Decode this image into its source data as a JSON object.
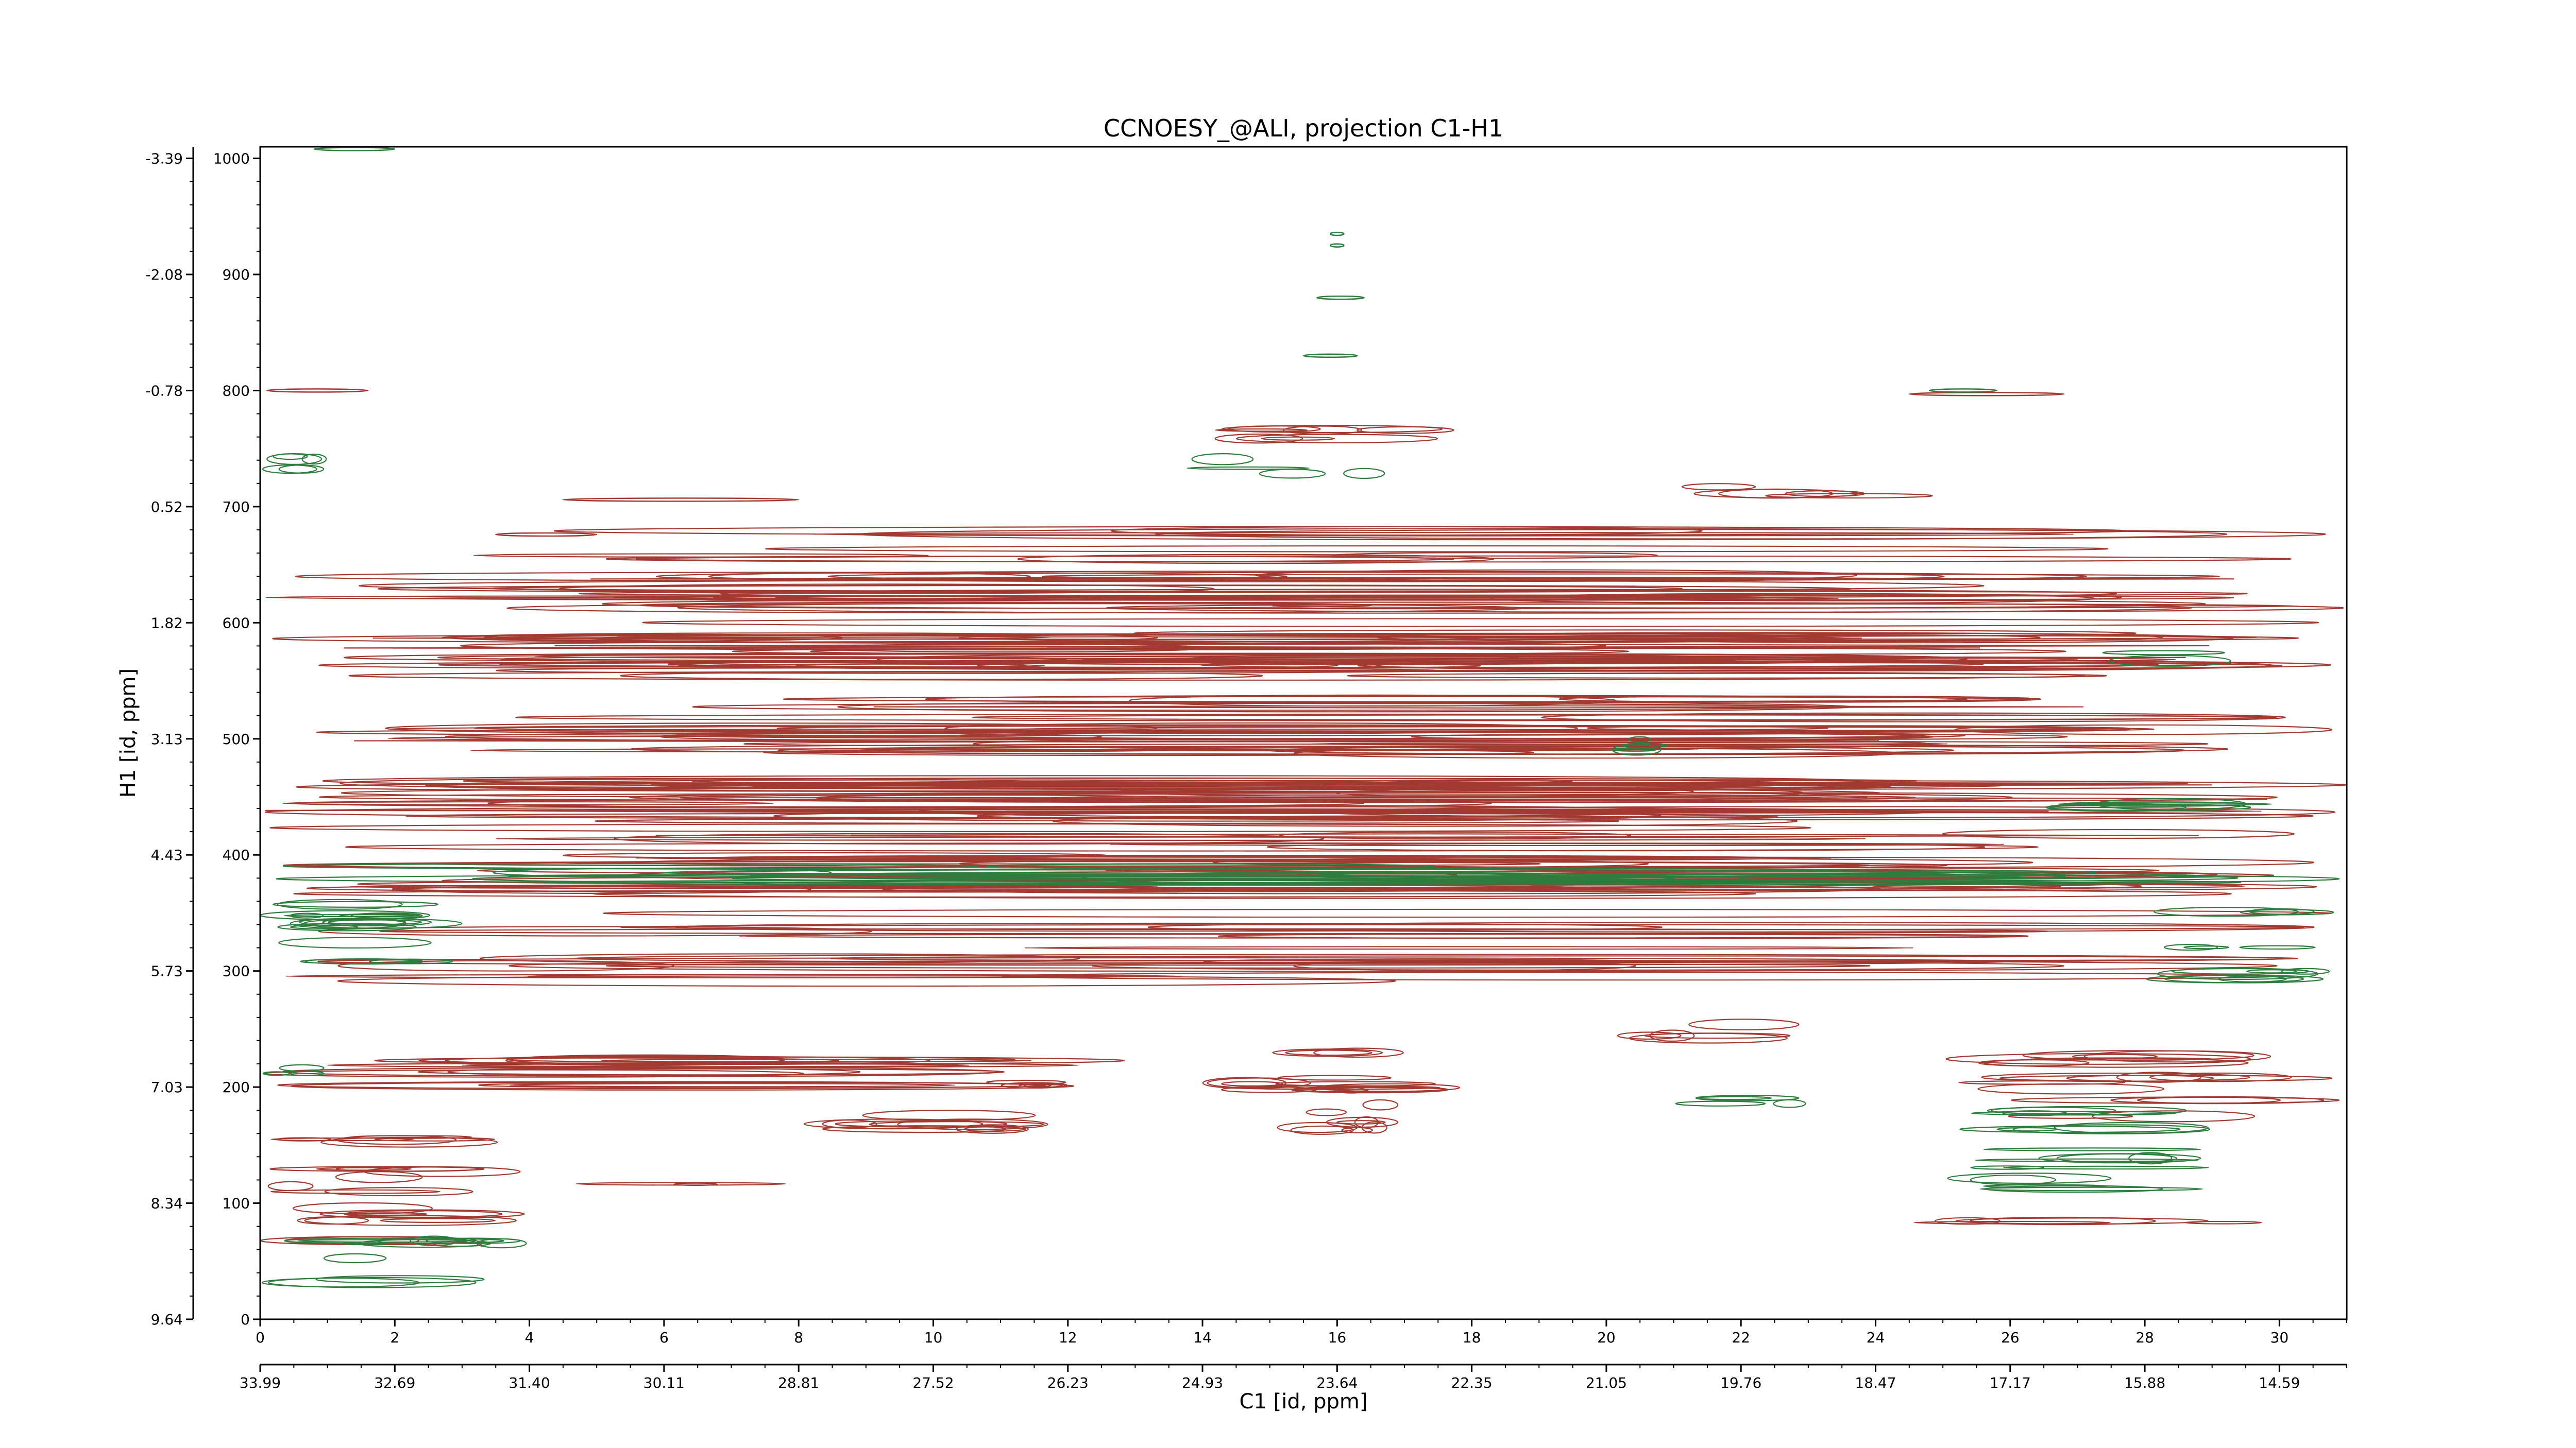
{
  "chart_data": {
    "type": "contour",
    "title": "CCNOESY_@ALI, projection C1-H1",
    "xlabel": "C1 [id, ppm]",
    "ylabel": "H1 [id, ppm]",
    "x_index_range": [
      0,
      31
    ],
    "y_index_range": [
      0,
      1010
    ],
    "x_index_ticks": [
      "0",
      "2",
      "4",
      "6",
      "8",
      "10",
      "12",
      "14",
      "16",
      "18",
      "20",
      "22",
      "24",
      "26",
      "28",
      "30"
    ],
    "x_ppm_ticks": [
      "33.99",
      "32.69",
      "31.40",
      "30.11",
      "28.81",
      "27.52",
      "26.23",
      "24.93",
      "23.64",
      "22.35",
      "21.05",
      "19.76",
      "18.47",
      "17.17",
      "15.88",
      "14.59"
    ],
    "y_index_ticks": [
      "0",
      "100",
      "200",
      "300",
      "400",
      "500",
      "600",
      "700",
      "800",
      "900",
      "1000"
    ],
    "y_ppm_ticks": [
      "9.64",
      "8.34",
      "7.03",
      "5.73",
      "4.43",
      "3.13",
      "1.82",
      "0.52",
      "-0.78",
      "-2.08",
      "-3.39"
    ],
    "series": [
      {
        "name": "",
        "color": "#a33a32",
        "bands": [
          [
            0,
            31,
            485,
            680,
            60
          ],
          [
            0,
            31,
            370,
            470,
            40
          ],
          [
            14,
            18,
            750,
            770,
            3
          ],
          [
            21,
            25,
            700,
            720,
            3
          ],
          [
            0,
            31,
            285,
            370,
            12
          ],
          [
            0,
            14,
            200,
            225,
            8
          ],
          [
            14,
            18,
            190,
            205,
            4
          ],
          [
            25,
            31,
            170,
            235,
            10
          ],
          [
            20,
            23,
            240,
            255,
            3
          ],
          [
            0,
            4,
            60,
            160,
            14
          ],
          [
            4,
            8,
            110,
            118,
            2
          ],
          [
            24,
            30,
            80,
            85,
            2
          ],
          [
            15,
            17,
            150,
            230,
            8
          ],
          [
            10,
            12,
            200,
            210,
            2
          ],
          [
            8,
            12,
            160,
            180,
            4
          ]
        ]
      },
      {
        "name": "",
        "color": "#2e7d3e",
        "bands": [
          [
            0,
            31,
            375,
            395,
            6
          ],
          [
            0,
            3,
            300,
            360,
            8
          ],
          [
            28,
            31,
            290,
            360,
            8
          ],
          [
            25,
            29,
            130,
            180,
            8
          ],
          [
            25,
            29,
            105,
            125,
            4
          ],
          [
            13,
            17,
            720,
            745,
            4
          ],
          [
            0,
            1,
            730,
            745,
            3
          ],
          [
            20,
            21,
            485,
            500,
            3
          ],
          [
            0,
            4,
            30,
            70,
            6
          ],
          [
            0,
            1,
            210,
            220,
            2
          ],
          [
            21,
            24,
            185,
            195,
            2
          ],
          [
            25,
            30,
            560,
            575,
            2
          ],
          [
            26,
            30,
            440,
            450,
            2
          ]
        ]
      }
    ],
    "isolated_marks": [
      {
        "color": "#2e7d3e",
        "x": [
          0.8,
          2.0
        ],
        "y": 1008
      },
      {
        "color": "#2e7d3e",
        "x": [
          15.9,
          16.1
        ],
        "y": 935
      },
      {
        "color": "#2e7d3e",
        "x": [
          15.9,
          16.1
        ],
        "y": 925
      },
      {
        "color": "#2e7d3e",
        "x": [
          15.7,
          16.4
        ],
        "y": 880
      },
      {
        "color": "#2e7d3e",
        "x": [
          15.5,
          16.3
        ],
        "y": 830
      },
      {
        "color": "#a33a32",
        "x": [
          0.1,
          1.6
        ],
        "y": 800
      },
      {
        "color": "#a33a32",
        "x": [
          24.5,
          26.8
        ],
        "y": 797
      },
      {
        "color": "#2e7d3e",
        "x": [
          24.8,
          25.8
        ],
        "y": 800
      },
      {
        "color": "#a33a32",
        "x": [
          4.5,
          8.0
        ],
        "y": 706
      },
      {
        "color": "#a33a32",
        "x": [
          3.5,
          5.0
        ],
        "y": 676
      }
    ],
    "grid": false,
    "legend": "none"
  }
}
